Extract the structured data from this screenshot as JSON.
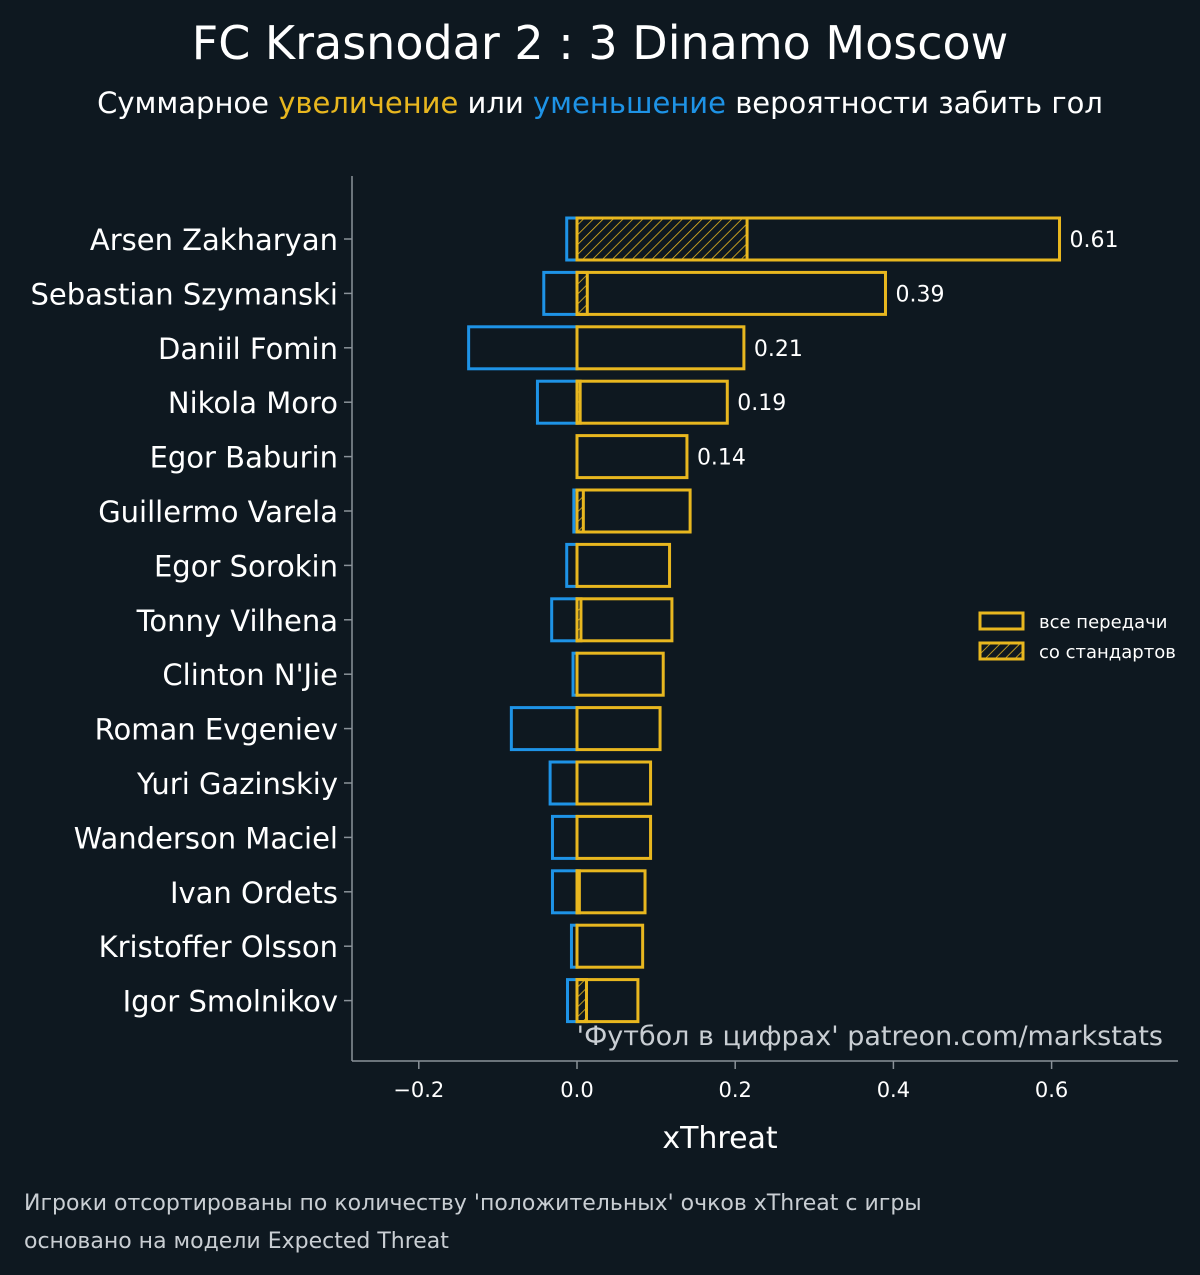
{
  "title": "FC Krasnodar 2 : 3 Dinamo Moscow",
  "subtitle": {
    "prefix": "Суммарное ",
    "increase": "увеличение",
    "middle": " или ",
    "decrease": "уменьшение",
    "suffix": " вероятности забить гол"
  },
  "colors": {
    "background": "#0e1820",
    "positive": "#e8b71f",
    "negative": "#1e93e6",
    "axis": "#8a9299",
    "text": "#ffffff",
    "muted": "#c9ced3"
  },
  "watermark": "'Футбол в цифрах' patreon.com/markstats",
  "footnote": [
    "Игроки отсортированы по количеству 'положительных' очков xThreat с игры",
    "основано на модели Expected Threat"
  ],
  "chart_data": {
    "type": "bar",
    "orientation": "horizontal",
    "xlabel": "xThreat",
    "xlim": [
      -0.29,
      0.76
    ],
    "xticks": [
      -0.2,
      0.0,
      0.2,
      0.4,
      0.6
    ],
    "xtick_labels": [
      "−0.2",
      "0.0",
      "0.2",
      "0.4",
      "0.6"
    ],
    "legend": {
      "position": "right",
      "entries": [
        "все передачи",
        "со стандартов"
      ]
    },
    "players": [
      {
        "name": "Arsen Zakharyan",
        "positive": 0.61,
        "negative": -0.013,
        "set_pieces": 0.215,
        "label": "0.61"
      },
      {
        "name": "Sebastian Szymanski",
        "positive": 0.39,
        "negative": -0.042,
        "set_pieces": 0.013,
        "label": "0.39"
      },
      {
        "name": "Daniil Fomin",
        "positive": 0.211,
        "negative": -0.137,
        "set_pieces": 0,
        "label": "0.21"
      },
      {
        "name": "Nikola Moro",
        "positive": 0.19,
        "negative": -0.05,
        "set_pieces": 0.004,
        "label": "0.19"
      },
      {
        "name": "Egor Baburin",
        "positive": 0.139,
        "negative": 0,
        "set_pieces": 0,
        "label": "0.14"
      },
      {
        "name": "Guillermo Varela",
        "positive": 0.143,
        "negative": -0.004,
        "set_pieces": 0.008,
        "label": ""
      },
      {
        "name": "Egor Sorokin",
        "positive": 0.117,
        "negative": -0.013,
        "set_pieces": 0,
        "label": ""
      },
      {
        "name": "Tonny Vilhena",
        "positive": 0.12,
        "negative": -0.032,
        "set_pieces": 0.005,
        "label": ""
      },
      {
        "name": "Clinton N'Jie",
        "positive": 0.109,
        "negative": -0.005,
        "set_pieces": 0,
        "label": ""
      },
      {
        "name": "Roman Evgeniev",
        "positive": 0.105,
        "negative": -0.083,
        "set_pieces": 0,
        "label": ""
      },
      {
        "name": "Yuri Gazinskiy",
        "positive": 0.093,
        "negative": -0.034,
        "set_pieces": 0,
        "label": ""
      },
      {
        "name": "Wanderson Maciel",
        "positive": 0.093,
        "negative": -0.031,
        "set_pieces": 0,
        "label": ""
      },
      {
        "name": "Ivan Ordets",
        "positive": 0.086,
        "negative": -0.031,
        "set_pieces": 0.003,
        "label": ""
      },
      {
        "name": "Kristoffer Olsson",
        "positive": 0.083,
        "negative": -0.007,
        "set_pieces": 0,
        "label": ""
      },
      {
        "name": "Igor Smolnikov",
        "positive": 0.077,
        "negative": -0.012,
        "set_pieces": 0.012,
        "label": ""
      }
    ]
  }
}
